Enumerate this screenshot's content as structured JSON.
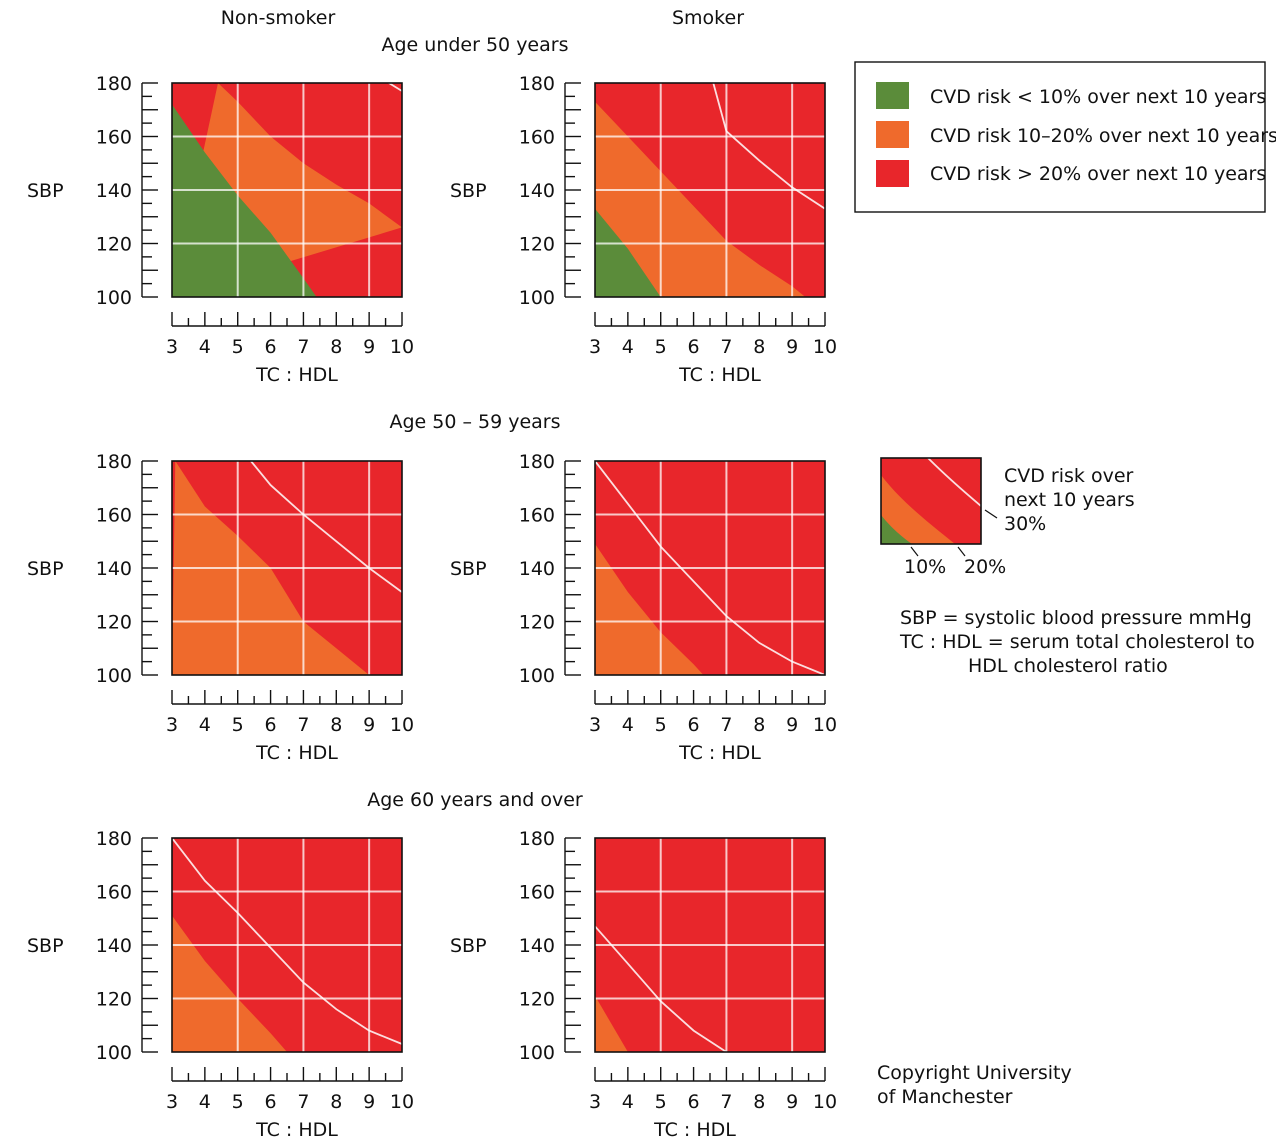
{
  "columns": {
    "left": "Non-smoker",
    "right": "Smoker"
  },
  "colors": {
    "green": "#5b8c3a",
    "orange": "#ef6a2c",
    "red": "#e8262b",
    "axis": "#111111"
  },
  "legend": {
    "items": [
      {
        "swatch": "green",
        "label": "CVD risk < 10% over next 10 years"
      },
      {
        "swatch": "orange",
        "label": "CVD risk 10–20% over next 10 years"
      },
      {
        "swatch": "red",
        "label": "CVD risk > 20% over next 10 years"
      }
    ]
  },
  "key": {
    "title": [
      "CVD risk over",
      "next 10 years"
    ],
    "labels": {
      "p30": "30%",
      "p10": "10%",
      "p20": "20%"
    }
  },
  "definitions": [
    "SBP = systolic blood pressure mmHg",
    "TC : HDL = serum total cholesterol to",
    "HDL cholesterol ratio"
  ],
  "copyright": [
    "Copyright University",
    "of Manchester"
  ],
  "chart_data": [
    {
      "type": "area",
      "group": "Age under 50 years",
      "column": "Non-smoker",
      "xlabel": "TC : HDL",
      "ylabel": "SBP",
      "xlim": [
        3,
        10
      ],
      "ylim": [
        100,
        180
      ],
      "xticks": [
        3,
        4,
        5,
        6,
        7,
        8,
        9,
        10
      ],
      "yticks": [
        100,
        120,
        140,
        160,
        180
      ],
      "boundaries": {
        "p10": [
          [
            3,
            172
          ],
          [
            4,
            154
          ],
          [
            5,
            138
          ],
          [
            6,
            124
          ],
          [
            7,
            107
          ],
          [
            7.4,
            100
          ]
        ],
        "p20": [
          [
            4.4,
            180
          ],
          [
            5,
            173
          ],
          [
            6,
            160
          ],
          [
            7,
            150
          ],
          [
            8,
            142
          ],
          [
            9,
            135
          ],
          [
            10,
            126
          ]
        ],
        "p30": [
          [
            9.6,
            180
          ],
          [
            10,
            177
          ]
        ]
      }
    },
    {
      "type": "area",
      "group": "Age under 50 years",
      "column": "Smoker",
      "xlabel": "TC : HDL",
      "ylabel": "SBP",
      "xlim": [
        3,
        10
      ],
      "ylim": [
        100,
        180
      ],
      "xticks": [
        3,
        4,
        5,
        6,
        7,
        8,
        9,
        10
      ],
      "yticks": [
        100,
        120,
        140,
        160,
        180
      ],
      "boundaries": {
        "p10": [
          [
            3,
            133
          ],
          [
            4,
            118
          ],
          [
            5,
            100
          ]
        ],
        "p20": [
          [
            3,
            173
          ],
          [
            4,
            160
          ],
          [
            5,
            147
          ],
          [
            6,
            134
          ],
          [
            7,
            121
          ],
          [
            8,
            112
          ],
          [
            9,
            104
          ],
          [
            9.4,
            100
          ]
        ],
        "p30": [
          [
            6.6,
            180
          ],
          [
            7,
            162
          ],
          [
            8,
            151
          ],
          [
            9,
            141
          ],
          [
            10,
            133
          ]
        ]
      }
    },
    {
      "type": "area",
      "group": "Age 50 – 59 years",
      "column": "Non-smoker",
      "xlabel": "TC : HDL",
      "ylabel": "SBP",
      "xlim": [
        3,
        10
      ],
      "ylim": [
        100,
        180
      ],
      "xticks": [
        3,
        4,
        5,
        6,
        7,
        8,
        9,
        10
      ],
      "yticks": [
        100,
        120,
        140,
        160,
        180
      ],
      "boundaries": {
        "p10": [],
        "p20": [
          [
            3.1,
            180
          ],
          [
            4,
            163
          ],
          [
            5,
            152
          ],
          [
            6,
            140
          ],
          [
            7,
            120
          ],
          [
            8,
            110
          ],
          [
            9,
            100
          ]
        ],
        "p30": [
          [
            5.4,
            180
          ],
          [
            6,
            171
          ],
          [
            7,
            160
          ],
          [
            8,
            150
          ],
          [
            9,
            140
          ],
          [
            10,
            131
          ]
        ]
      }
    },
    {
      "type": "area",
      "group": "Age 50 – 59 years",
      "column": "Smoker",
      "xlabel": "TC : HDL",
      "ylabel": "SBP",
      "xlim": [
        3,
        10
      ],
      "ylim": [
        100,
        180
      ],
      "xticks": [
        3,
        4,
        5,
        6,
        7,
        8,
        9,
        10
      ],
      "yticks": [
        100,
        120,
        140,
        160,
        180
      ],
      "boundaries": {
        "p10": [],
        "p20": [
          [
            3,
            149
          ],
          [
            4,
            131
          ],
          [
            5,
            116
          ],
          [
            6,
            104
          ],
          [
            6.3,
            100
          ]
        ],
        "p30": [
          [
            3,
            180
          ],
          [
            4,
            164
          ],
          [
            5,
            148
          ],
          [
            6,
            135
          ],
          [
            7,
            122
          ],
          [
            8,
            112
          ],
          [
            9,
            105
          ],
          [
            10,
            100
          ]
        ]
      }
    },
    {
      "type": "area",
      "group": "Age 60 years and over",
      "column": "Non-smoker",
      "xlabel": "TC : HDL",
      "ylabel": "SBP",
      "xlim": [
        3,
        10
      ],
      "ylim": [
        100,
        180
      ],
      "xticks": [
        3,
        4,
        5,
        6,
        7,
        8,
        9,
        10
      ],
      "yticks": [
        100,
        120,
        140,
        160,
        180
      ],
      "boundaries": {
        "p10": [],
        "p20": [
          [
            3,
            151
          ],
          [
            4,
            134
          ],
          [
            5,
            120
          ],
          [
            6,
            107
          ],
          [
            6.5,
            100
          ]
        ],
        "p30": [
          [
            3,
            180
          ],
          [
            4,
            164
          ],
          [
            5,
            152
          ],
          [
            6,
            139
          ],
          [
            7,
            126
          ],
          [
            8,
            116
          ],
          [
            9,
            108
          ],
          [
            10,
            103
          ]
        ]
      }
    },
    {
      "type": "area",
      "group": "Age 60 years and over",
      "column": "Smoker",
      "xlabel": "TC : HDL",
      "ylabel": "SBP",
      "xlim": [
        3,
        10
      ],
      "ylim": [
        100,
        180
      ],
      "xticks": [
        3,
        4,
        5,
        6,
        7,
        8,
        9,
        10
      ],
      "yticks": [
        100,
        120,
        140,
        160,
        180
      ],
      "boundaries": {
        "p10": [],
        "p20": [
          [
            3,
            121
          ],
          [
            4,
            100
          ]
        ],
        "p30": [
          [
            3,
            147
          ],
          [
            4,
            133
          ],
          [
            5,
            119
          ],
          [
            6,
            108
          ],
          [
            7,
            100
          ]
        ]
      }
    }
  ]
}
